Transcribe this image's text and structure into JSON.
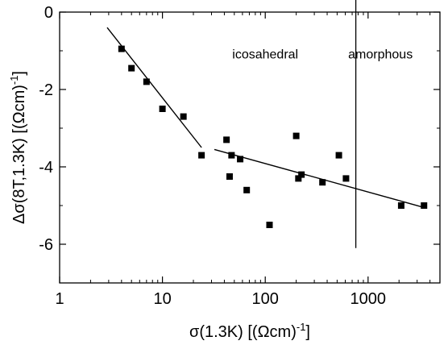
{
  "chart_data": {
    "type": "scatter",
    "xlabel": "σ(1.3K)  [(Ωcm)",
    "xlabel_sup": "-1",
    "xlabel_end": "]",
    "ylabel": "Δσ(8T,1.3K)  [(Ωcm)",
    "ylabel_sup": "-1",
    "ylabel_end": "]",
    "x_scale": "log",
    "xlim": [
      1,
      5000
    ],
    "ylim": [
      -7,
      0
    ],
    "x_ticks": [
      {
        "value": 1,
        "label": "1"
      },
      {
        "value": 10,
        "label": "10"
      },
      {
        "value": 100,
        "label": "100"
      },
      {
        "value": 1000,
        "label": "1000"
      }
    ],
    "y_ticks": [
      {
        "value": 0,
        "label": "0"
      },
      {
        "value": -2,
        "label": "-2"
      },
      {
        "value": -4,
        "label": "-4"
      },
      {
        "value": -6,
        "label": "-6"
      }
    ],
    "grid": false,
    "series": [
      {
        "marker": "square",
        "color": "#000000",
        "points": [
          {
            "x": 4.0,
            "y": -0.95
          },
          {
            "x": 5.0,
            "y": -1.45
          },
          {
            "x": 7.0,
            "y": -1.8
          },
          {
            "x": 10.0,
            "y": -2.5
          },
          {
            "x": 16.0,
            "y": -2.7
          },
          {
            "x": 24.0,
            "y": -3.7
          },
          {
            "x": 42.0,
            "y": -3.3
          },
          {
            "x": 45.0,
            "y": -4.25
          },
          {
            "x": 47.0,
            "y": -3.7
          },
          {
            "x": 57.0,
            "y": -3.8
          },
          {
            "x": 66.0,
            "y": -4.6
          },
          {
            "x": 110.0,
            "y": -5.5
          },
          {
            "x": 200.0,
            "y": -3.2
          },
          {
            "x": 210.0,
            "y": -4.3
          },
          {
            "x": 225.0,
            "y": -4.2
          },
          {
            "x": 360.0,
            "y": -4.4
          },
          {
            "x": 520.0,
            "y": -3.7
          },
          {
            "x": 610.0,
            "y": -4.3
          },
          {
            "x": 2100.0,
            "y": -5.0
          },
          {
            "x": 3500.0,
            "y": -5.0
          }
        ]
      }
    ],
    "fit_lines": [
      {
        "x1": 2.9,
        "y1": -0.4,
        "x2": 24.0,
        "y2": -3.5
      },
      {
        "x1": 32.0,
        "y1": -3.55,
        "x2": 3500.0,
        "y2": -5.05
      }
    ],
    "vline": {
      "x": 760,
      "y_from": -6.1,
      "y_to": 0.5
    },
    "annotations": [
      {
        "text": "icosahedral",
        "x": 100,
        "y": -1.2,
        "anchor": "middle"
      },
      {
        "text": "amorphous",
        "x": 1320,
        "y": -1.2,
        "anchor": "middle"
      }
    ]
  }
}
